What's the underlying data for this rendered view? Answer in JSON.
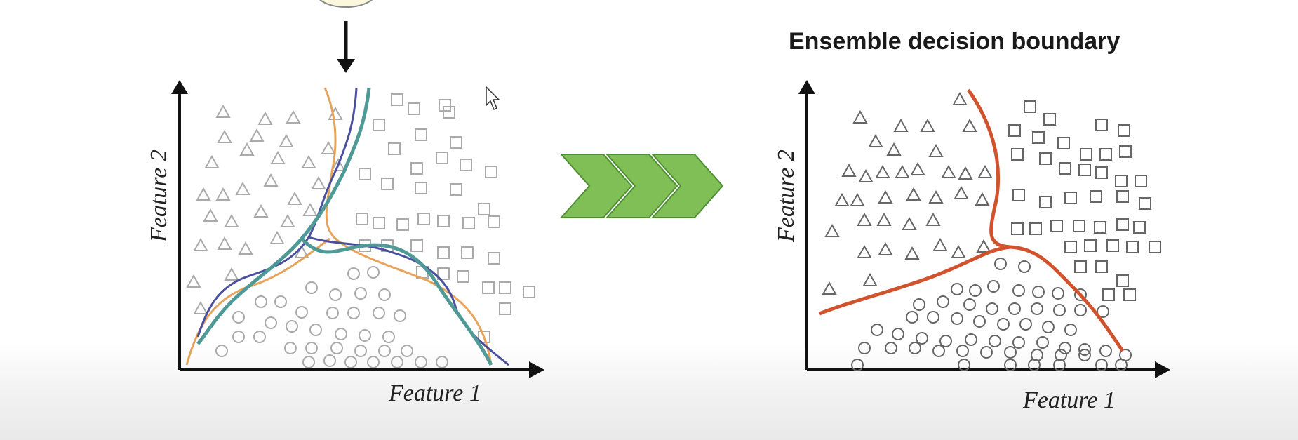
{
  "left_panel": {
    "x_label": "Feature 1",
    "y_label": "Feature 2",
    "boundary_colors": [
      "#e8a35a",
      "#4a4f9e",
      "#4f9a96"
    ]
  },
  "right_panel": {
    "title": "Ensemble decision boundary",
    "x_label": "Feature 1",
    "y_label": "Feature 2",
    "boundary_color": "#d0532e"
  },
  "transition": {
    "icon": "chevron-arrows-icon",
    "color": "#7fbf55"
  },
  "input_arrow": {
    "icon": "down-arrow-icon"
  },
  "cursor": {
    "icon": "cursor-pointer-icon"
  },
  "legend_shapes": {
    "class_a": "triangle",
    "class_b": "square",
    "class_c": "circle"
  }
}
